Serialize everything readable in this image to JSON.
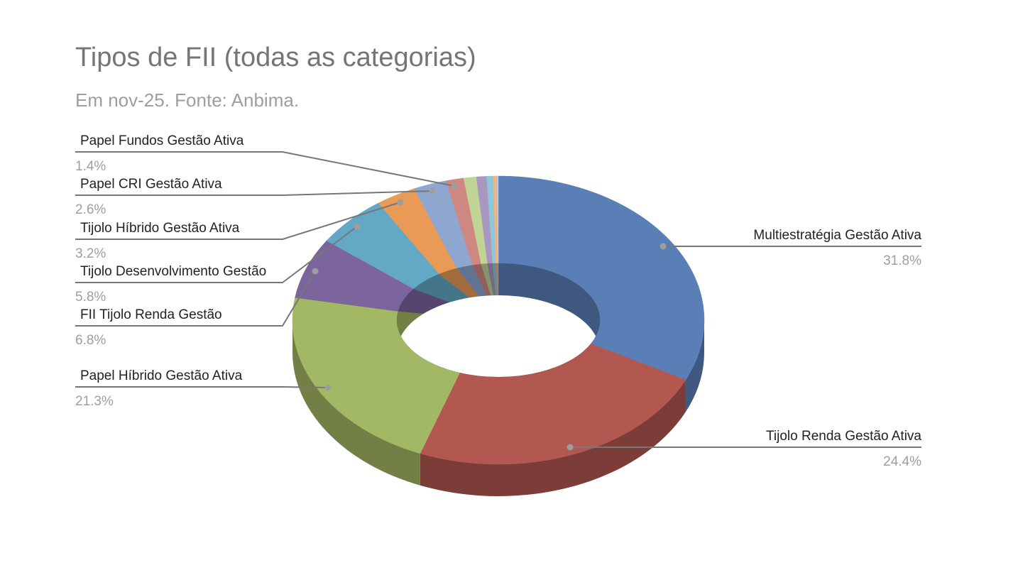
{
  "chart_data": {
    "type": "pie",
    "style": "3d-donut",
    "title": "Tipos de FII (todas as categorias)",
    "subtitle": "Em nov-25. Fonte: Anbima.",
    "slices": [
      {
        "name": "Multiestratégia Gestão Ativa",
        "value": 31.8,
        "label": "31.8%",
        "color": "#5a7fb6"
      },
      {
        "name": "Tijolo Renda Gestão Ativa",
        "value": 24.4,
        "label": "24.4%",
        "color": "#b25850"
      },
      {
        "name": "Papel Híbrido Gestão Ativa",
        "value": 21.3,
        "label": "21.3%",
        "color": "#a3b865"
      },
      {
        "name": "FII Tijolo Renda Gestão",
        "value": 6.8,
        "label": "6.8%",
        "color": "#7c649c"
      },
      {
        "name": "Tijolo Desenvolvimento Gestão",
        "value": 5.8,
        "label": "5.8%",
        "color": "#63a8c4"
      },
      {
        "name": "Tijolo Híbrido Gestão Ativa",
        "value": 3.2,
        "label": "3.2%",
        "color": "#e89a56"
      },
      {
        "name": "Papel CRI Gestão Ativa",
        "value": 2.6,
        "label": "2.6%",
        "color": "#8da7d0"
      },
      {
        "name": "Papel Fundos Gestão Ativa",
        "value": 1.4,
        "label": "1.4%",
        "color": "#cf8782"
      },
      {
        "name": "",
        "value": 1.0,
        "label": "",
        "color": "#c0d496"
      },
      {
        "name": "",
        "value": 0.8,
        "label": "",
        "color": "#a898c0"
      },
      {
        "name": "",
        "value": 0.5,
        "label": "",
        "color": "#90c6da"
      },
      {
        "name": "",
        "value": 0.3,
        "label": "",
        "color": "#f3b27a"
      },
      {
        "name": "",
        "value": 0.1,
        "label": "",
        "color": "#b6c6e2"
      }
    ]
  }
}
